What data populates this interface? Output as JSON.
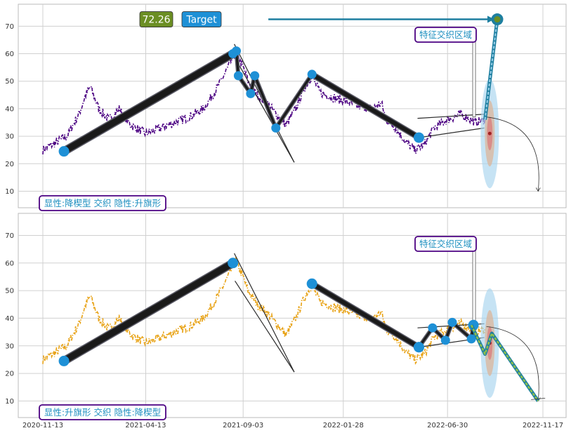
{
  "chart_data": [
    {
      "type": "line",
      "panel": "top",
      "ylim": [
        4,
        78
      ],
      "yticks": [
        10,
        20,
        30,
        40,
        50,
        60,
        70
      ],
      "price_color": "#4b0082",
      "price_style": "dash-dot",
      "anchor_points": [
        [
          "2020-11-13",
          25
        ],
        [
          "2020-11-27",
          27
        ],
        [
          "2020-12-18",
          30
        ],
        [
          "2021-01-05",
          38
        ],
        [
          "2021-01-15",
          45
        ],
        [
          "2021-01-22",
          48
        ],
        [
          "2021-02-03",
          40
        ],
        [
          "2021-02-18",
          36
        ],
        [
          "2021-03-05",
          40
        ],
        [
          "2021-03-22",
          34
        ],
        [
          "2021-04-13",
          31
        ],
        [
          "2021-05-05",
          33
        ],
        [
          "2021-05-26",
          35
        ],
        [
          "2021-06-16",
          37
        ],
        [
          "2021-07-07",
          40
        ],
        [
          "2021-07-28",
          48
        ],
        [
          "2021-08-18",
          58
        ],
        [
          "2021-08-23",
          61
        ],
        [
          "2021-09-03",
          55
        ],
        [
          "2021-09-10",
          50
        ],
        [
          "2021-09-24",
          45
        ],
        [
          "2021-10-08",
          42
        ],
        [
          "2021-10-22",
          38
        ],
        [
          "2021-11-05",
          34
        ],
        [
          "2021-11-19",
          40
        ],
        [
          "2021-12-03",
          48
        ],
        [
          "2021-12-13",
          52
        ],
        [
          "2021-12-24",
          46
        ],
        [
          "2022-01-14",
          44
        ],
        [
          "2022-01-28",
          43
        ],
        [
          "2022-02-18",
          41
        ],
        [
          "2022-03-11",
          40
        ],
        [
          "2022-03-25",
          42
        ],
        [
          "2022-04-01",
          36
        ],
        [
          "2022-04-15",
          33
        ],
        [
          "2022-04-29",
          28
        ],
        [
          "2022-05-13",
          25
        ],
        [
          "2022-05-27",
          27
        ],
        [
          "2022-06-10",
          33
        ],
        [
          "2022-06-30",
          36
        ],
        [
          "2022-07-20",
          38
        ],
        [
          "2022-08-10",
          35
        ],
        [
          "2022-08-24",
          36
        ]
      ],
      "zigzag_points": [
        [
          "2020-12-14",
          24.5
        ],
        [
          "2021-08-19",
          60
        ],
        [
          "2021-08-24",
          61
        ],
        [
          "2021-08-27",
          52
        ],
        [
          "2021-09-14",
          45.5
        ],
        [
          "2021-09-20",
          52
        ],
        [
          "2021-10-21",
          33
        ],
        [
          "2021-12-13",
          52.5
        ],
        [
          "2022-05-19",
          29.5
        ]
      ],
      "thin_lines": [
        [
          [
            "2021-08-21",
            63.5
          ],
          [
            "2021-11-17",
            20.5
          ]
        ],
        [
          [
            "2021-08-22",
            58.5
          ],
          [
            "2021-11-17",
            20.5
          ]
        ],
        [
          [
            "2022-05-17",
            36.5
          ],
          [
            "2022-08-23",
            38
          ]
        ],
        [
          [
            "2022-05-19",
            29.5
          ],
          [
            "2022-08-23",
            33
          ]
        ]
      ],
      "target": {
        "value_label": "72.26",
        "label": "Target",
        "value": 72.26,
        "from": [
          "2022-08-24",
          36
        ],
        "to": [
          "2022-09-11",
          72.5
        ],
        "arrow_start_date": "2021-10-10"
      },
      "region_label": "特征交织区域",
      "pattern_label": "显性:降楔型 交织 隐性:升旗形"
    },
    {
      "type": "line",
      "panel": "bottom",
      "ylim": [
        4,
        78
      ],
      "yticks": [
        10,
        20,
        30,
        40,
        50,
        60,
        70
      ],
      "xticks": [
        "2020-11-13",
        "2021-04-13",
        "2021-09-03",
        "2022-01-28",
        "2022-06-30",
        "2022-11-17"
      ],
      "price_color": "#e8a317",
      "price_style": "dash-dot",
      "zigzag_points": [
        [
          "2020-12-14",
          24.5
        ],
        [
          "2021-08-19",
          60
        ]
      ],
      "zigzag_points_2": [
        [
          "2021-12-13",
          52.5
        ],
        [
          "2022-05-19",
          29.5
        ]
      ],
      "wave_points": [
        [
          "2022-05-19",
          29.5
        ],
        [
          "2022-06-08",
          36.5
        ],
        [
          "2022-06-27",
          32
        ],
        [
          "2022-07-07",
          38.5
        ],
        [
          "2022-08-04",
          32.5
        ],
        [
          "2022-08-07",
          37.5
        ]
      ],
      "thin_lines": [
        [
          [
            "2021-08-21",
            63.5
          ],
          [
            "2021-11-17",
            20.5
          ]
        ],
        [
          [
            "2021-08-22",
            53.5
          ],
          [
            "2021-11-17",
            20.5
          ]
        ],
        [
          [
            "2022-05-17",
            36.5
          ],
          [
            "2022-08-23",
            38
          ]
        ],
        [
          [
            "2022-05-19",
            29.5
          ],
          [
            "2022-08-23",
            33
          ]
        ]
      ],
      "projection": {
        "points": [
          [
            "2022-08-04",
            37.5
          ],
          [
            "2022-08-24",
            27
          ],
          [
            "2022-09-03",
            34.5
          ],
          [
            "2022-11-10",
            10
          ]
        ]
      },
      "region_label": "特征交织区域",
      "pattern_label": "显性:升旗形 交织 隐性:降楔型"
    }
  ],
  "colors": {
    "marker": "#1e90d6",
    "zigzag": "#1a1a1a",
    "label_border": "#4b0082",
    "label_text": "#1e8fc0",
    "value_box": "#6b8e23",
    "target_box": "#1e90d6",
    "target_arrow": "#1e7fa0",
    "ellipse_outer": "#a8d4ee",
    "ellipse_mid": "#d9b8a0",
    "ellipse_inner": "#d98080",
    "grid": "#d0d0d0"
  }
}
